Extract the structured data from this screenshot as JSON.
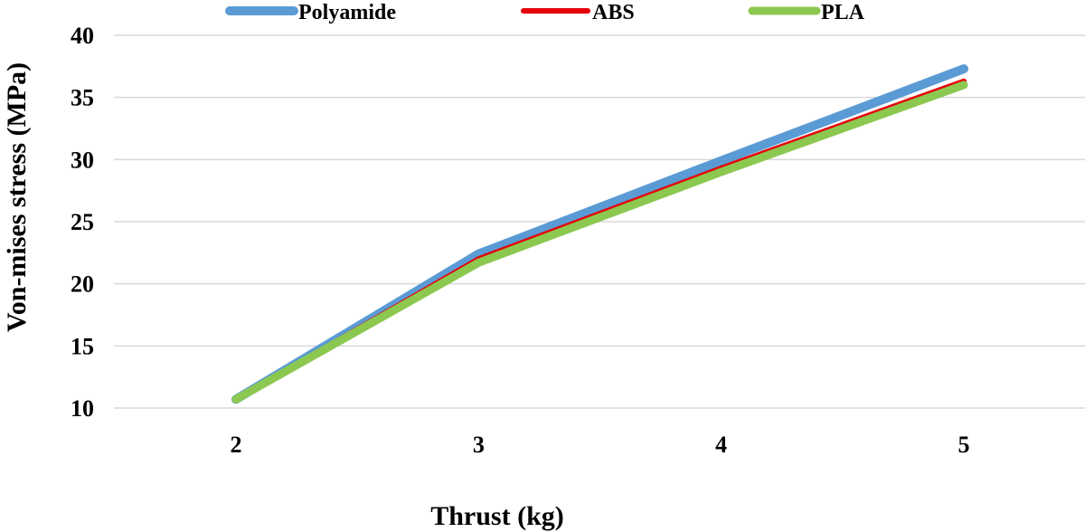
{
  "chart_data": {
    "type": "line",
    "title": "",
    "xlabel": "Thrust (kg)",
    "ylabel": "Von-mises stress (MPa)",
    "categories": [
      "2",
      "3",
      "4",
      "5"
    ],
    "x": [
      2,
      3,
      4,
      5
    ],
    "ylim": [
      10,
      40
    ],
    "yticks": [
      "10",
      "15",
      "20",
      "25",
      "30",
      "35",
      "40"
    ],
    "grid": "horizontal",
    "legend_position": "top",
    "series": [
      {
        "name": "Polyamide",
        "color": "#5B9BD5",
        "values": [
          10.7,
          22.4,
          29.9,
          37.3
        ]
      },
      {
        "name": "ABS",
        "color": "#E6000A",
        "values": [
          10.7,
          22.0,
          29.3,
          36.3
        ]
      },
      {
        "name": "PLA",
        "color": "#8CC850",
        "values": [
          10.7,
          21.7,
          29.0,
          36.0
        ]
      }
    ]
  }
}
